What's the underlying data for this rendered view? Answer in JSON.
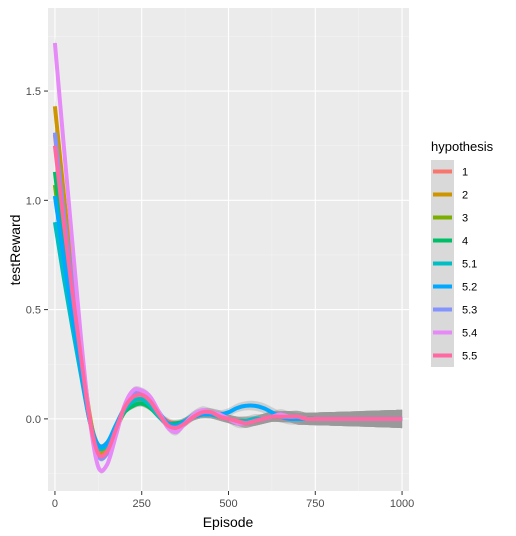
{
  "chart_data": {
    "type": "line",
    "title": "",
    "xlabel": "Episode",
    "ylabel": "testReward",
    "xlim": [
      -20,
      1020
    ],
    "ylim": [
      -0.33,
      1.88
    ],
    "x_ticks": [
      0,
      250,
      500,
      750,
      1000
    ],
    "x_tick_labels": [
      "0",
      "250",
      "500",
      "750",
      "1000"
    ],
    "y_ticks": [
      0.0,
      0.5,
      1.0,
      1.5
    ],
    "y_tick_labels": [
      "0.0",
      "0.5",
      "1.0",
      "1.5"
    ],
    "grid": true,
    "legend_title": "hypothesis",
    "legend_position": "right",
    "colors": {
      "panel_bg": "#ebebeb",
      "grid_major": "#ffffff",
      "grid_minor": "#f3f3f3",
      "ribbon": "#999999",
      "legend_key_bg": "#d9d9d9"
    },
    "x": [
      0,
      25,
      50,
      75,
      100,
      125,
      150,
      175,
      200,
      225,
      250,
      275,
      300,
      325,
      350,
      375,
      400,
      425,
      450,
      475,
      500,
      525,
      550,
      575,
      600,
      625,
      650,
      675,
      700,
      725,
      750,
      775,
      800,
      825,
      850,
      875,
      900,
      925,
      950,
      975,
      1000
    ],
    "series": [
      {
        "name": "1",
        "color": "#F8766D",
        "values": [
          1.3,
          0.93,
          0.6,
          0.29,
          0.01,
          -0.12,
          -0.11,
          -0.04,
          0.03,
          0.07,
          0.08,
          0.06,
          0.02,
          -0.01,
          -0.02,
          -0.01,
          0.01,
          0.02,
          0.02,
          0.01,
          0.0,
          -0.01,
          -0.01,
          -0.01,
          0.0,
          0.01,
          0.01,
          0.01,
          0.01,
          0.0,
          0.0,
          0.0,
          0.0,
          0.0,
          0.0,
          0.0,
          0.0,
          0.0,
          0.0,
          0.0,
          0.0
        ]
      },
      {
        "name": "2",
        "color": "#CD9600",
        "values": [
          1.43,
          1.04,
          0.66,
          0.32,
          0.02,
          -0.15,
          -0.13,
          -0.04,
          0.04,
          0.08,
          0.09,
          0.07,
          0.02,
          -0.02,
          -0.03,
          -0.01,
          0.01,
          0.02,
          0.02,
          0.01,
          0.0,
          -0.01,
          -0.02,
          -0.01,
          0.0,
          0.01,
          0.01,
          0.01,
          0.0,
          0.0,
          0.0,
          0.0,
          0.0,
          0.0,
          0.0,
          0.0,
          0.0,
          0.0,
          0.0,
          0.0,
          0.0
        ]
      },
      {
        "name": "3",
        "color": "#7CAE00",
        "values": [
          1.07,
          0.76,
          0.5,
          0.25,
          0.0,
          -0.13,
          -0.12,
          -0.05,
          0.03,
          0.06,
          0.07,
          0.05,
          0.01,
          -0.02,
          -0.03,
          -0.01,
          0.01,
          0.02,
          0.02,
          0.01,
          0.0,
          -0.01,
          -0.01,
          -0.01,
          0.0,
          0.01,
          0.01,
          0.01,
          0.0,
          0.0,
          0.0,
          0.0,
          0.0,
          0.0,
          0.0,
          0.0,
          0.0,
          0.0,
          0.0,
          0.0,
          0.0
        ]
      },
      {
        "name": "4",
        "color": "#00BE67",
        "values": [
          1.13,
          0.8,
          0.52,
          0.26,
          0.0,
          -0.12,
          -0.11,
          -0.04,
          0.03,
          0.06,
          0.07,
          0.05,
          0.01,
          -0.02,
          -0.02,
          -0.01,
          0.01,
          0.02,
          0.02,
          0.01,
          0.0,
          -0.01,
          -0.01,
          -0.01,
          0.0,
          0.01,
          0.01,
          0.01,
          0.0,
          0.0,
          0.0,
          0.0,
          0.0,
          0.0,
          0.0,
          0.0,
          0.0,
          0.0,
          0.0,
          0.0,
          0.0
        ]
      },
      {
        "name": "5.1",
        "color": "#00BFC4",
        "values": [
          0.9,
          0.65,
          0.42,
          0.2,
          -0.01,
          -0.13,
          -0.12,
          -0.04,
          0.04,
          0.08,
          0.09,
          0.06,
          0.01,
          -0.03,
          -0.04,
          -0.01,
          0.02,
          0.03,
          0.02,
          0.01,
          0.0,
          -0.01,
          -0.01,
          0.0,
          0.0,
          0.01,
          0.01,
          0.01,
          0.0,
          0.0,
          0.0,
          0.0,
          0.0,
          0.0,
          0.0,
          0.0,
          0.0,
          0.0,
          0.0,
          0.0,
          0.0
        ]
      },
      {
        "name": "5.2",
        "color": "#00A9FF",
        "values": [
          1.02,
          0.74,
          0.47,
          0.22,
          -0.01,
          -0.12,
          -0.11,
          -0.03,
          0.05,
          0.1,
          0.12,
          0.09,
          0.03,
          -0.02,
          -0.03,
          -0.01,
          0.01,
          0.02,
          0.02,
          0.02,
          0.03,
          0.05,
          0.06,
          0.06,
          0.05,
          0.03,
          0.01,
          0.0,
          0.0,
          0.0,
          0.0,
          0.0,
          0.0,
          0.0,
          0.0,
          0.0,
          0.0,
          0.0,
          0.0,
          0.0,
          0.0
        ]
      },
      {
        "name": "5.3",
        "color": "#8494FF",
        "values": [
          1.31,
          0.95,
          0.61,
          0.29,
          0.0,
          -0.17,
          -0.16,
          -0.06,
          0.05,
          0.11,
          0.12,
          0.09,
          0.03,
          -0.03,
          -0.05,
          -0.02,
          0.01,
          0.03,
          0.03,
          0.02,
          0.0,
          -0.01,
          -0.02,
          -0.01,
          0.0,
          0.01,
          0.01,
          0.01,
          0.01,
          0.0,
          0.0,
          0.0,
          0.0,
          0.0,
          0.0,
          0.0,
          0.0,
          0.0,
          0.0,
          0.0,
          0.0
        ]
      },
      {
        "name": "5.4",
        "color": "#E68AF7",
        "values": [
          1.72,
          1.26,
          0.81,
          0.37,
          0.0,
          -0.22,
          -0.21,
          -0.08,
          0.06,
          0.13,
          0.13,
          0.1,
          0.03,
          -0.04,
          -0.06,
          -0.02,
          0.02,
          0.04,
          0.03,
          0.02,
          0.0,
          -0.02,
          -0.02,
          -0.01,
          0.0,
          0.01,
          0.02,
          0.01,
          0.01,
          0.0,
          0.0,
          0.0,
          0.0,
          0.0,
          0.0,
          0.0,
          0.0,
          0.0,
          0.0,
          0.0,
          0.0
        ]
      },
      {
        "name": "5.5",
        "color": "#FF68A1",
        "values": [
          1.25,
          0.9,
          0.58,
          0.28,
          0.0,
          -0.16,
          -0.15,
          -0.05,
          0.05,
          0.1,
          0.11,
          0.08,
          0.02,
          -0.03,
          -0.04,
          -0.02,
          0.01,
          0.03,
          0.03,
          0.01,
          0.0,
          -0.01,
          -0.02,
          -0.01,
          0.0,
          0.01,
          0.01,
          0.01,
          0.01,
          0.0,
          0.0,
          0.0,
          0.0,
          0.0,
          0.0,
          0.0,
          0.0,
          0.0,
          0.0,
          0.0,
          0.0
        ]
      }
    ]
  }
}
